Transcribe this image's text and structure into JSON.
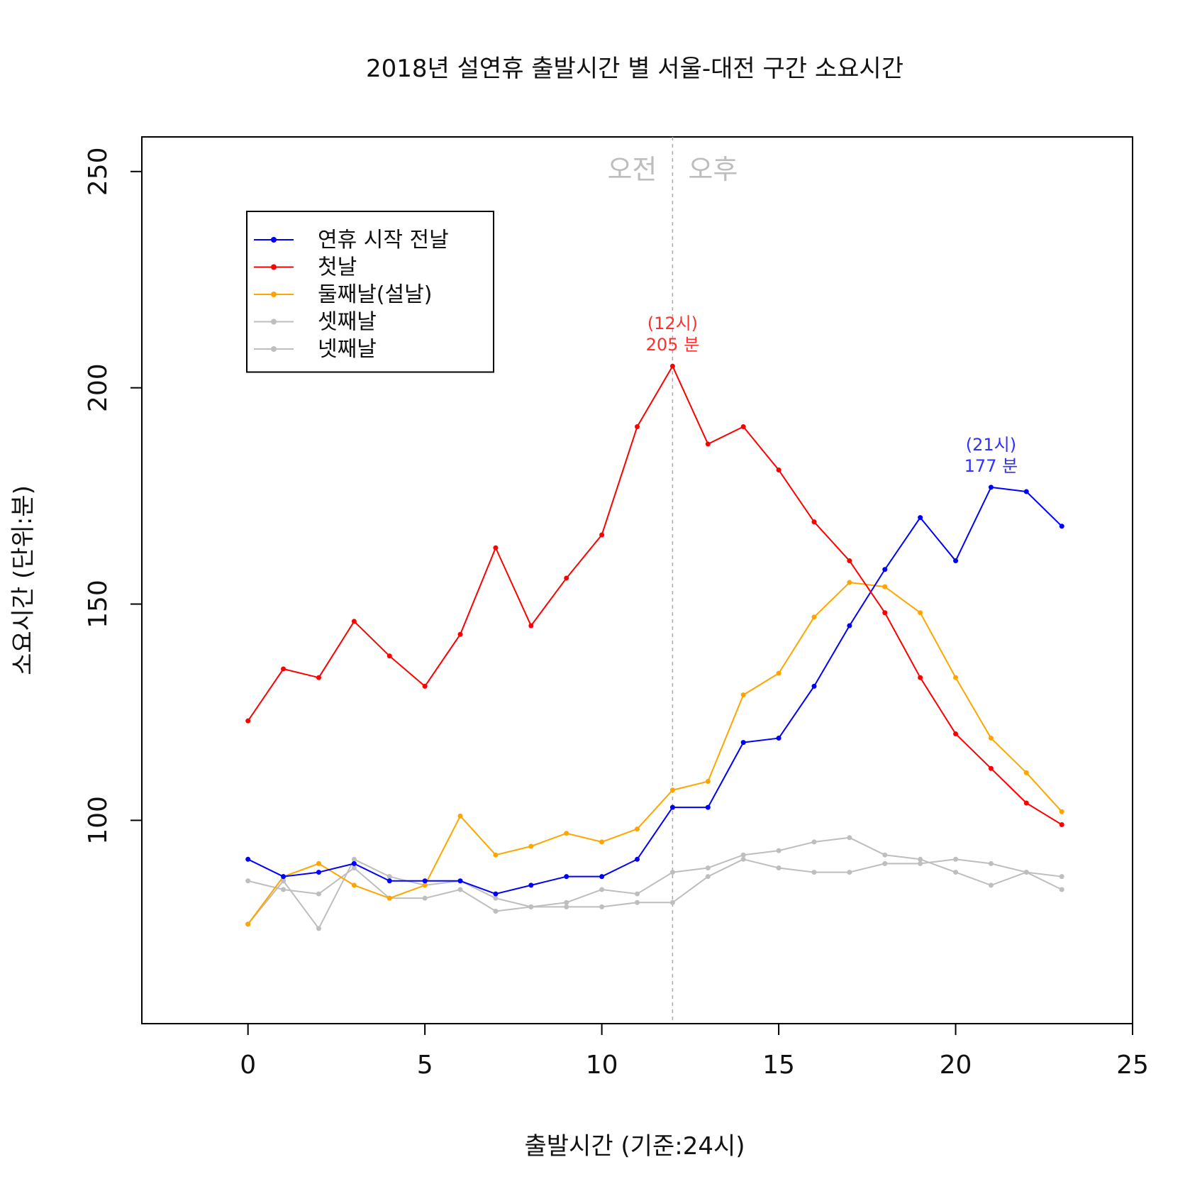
{
  "chart_data": {
    "type": "line",
    "title": "2018년 설연휴 출발시간 별 서울-대전 구간 소요시간",
    "xlabel": "출발시간 (기준:24시)",
    "ylabel": "소요시간 (단위:분)",
    "xlim": [
      -3,
      25
    ],
    "ylim": [
      53,
      258
    ],
    "x_ticks": [
      0,
      5,
      10,
      15,
      20,
      25
    ],
    "y_ticks": [
      100,
      150,
      200,
      250
    ],
    "grid": false,
    "legend_position": "top-left",
    "x": [
      0,
      1,
      2,
      3,
      4,
      5,
      6,
      7,
      8,
      9,
      10,
      11,
      12,
      13,
      14,
      15,
      16,
      17,
      18,
      19,
      20,
      21,
      22,
      23
    ],
    "series": [
      {
        "name": "연휴 시작 전날",
        "color": "#0000ff",
        "values": [
          91,
          87,
          88,
          90,
          86,
          86,
          86,
          83,
          85,
          87,
          87,
          91,
          103,
          103,
          118,
          119,
          131,
          145,
          158,
          170,
          160,
          177,
          176,
          168
        ]
      },
      {
        "name": "첫날",
        "color": "#ff0000",
        "values": [
          123,
          135,
          133,
          146,
          138,
          131,
          143,
          163,
          145,
          156,
          166,
          191,
          205,
          187,
          191,
          181,
          169,
          160,
          148,
          133,
          120,
          112,
          104,
          99
        ]
      },
      {
        "name": "둘째날(설날)",
        "color": "#ffa500",
        "values": [
          76,
          87,
          90,
          85,
          82,
          85,
          101,
          92,
          94,
          97,
          95,
          98,
          107,
          109,
          129,
          134,
          147,
          155,
          154,
          148,
          133,
          119,
          111,
          102
        ]
      },
      {
        "name": "셋째날",
        "color": "#bebebe",
        "values": [
          76,
          86,
          75,
          91,
          87,
          85,
          86,
          82,
          80,
          81,
          84,
          83,
          88,
          89,
          92,
          93,
          95,
          96,
          92,
          91,
          88,
          85,
          88,
          84
        ]
      },
      {
        "name": "넷째날",
        "color": "#bebebe",
        "values": [
          86,
          84,
          83,
          89,
          82,
          82,
          84,
          79,
          80,
          80,
          80,
          81,
          81,
          87,
          91,
          89,
          88,
          88,
          90,
          90,
          91,
          90,
          88,
          87
        ]
      }
    ],
    "reference_line": {
      "x": 12,
      "color": "#aaaaaa",
      "style": "dashed"
    },
    "annotations": [
      {
        "x": 12,
        "y": 205,
        "line1": "(12시)",
        "line2": "205 분",
        "color": "#ff3030"
      },
      {
        "x": 21,
        "y": 177,
        "line1": "(21시)",
        "line2": "177 분",
        "color": "#3030ff"
      }
    ],
    "period_labels": {
      "am": "오전",
      "pm": "오후",
      "color": "#bdbdbd"
    }
  }
}
